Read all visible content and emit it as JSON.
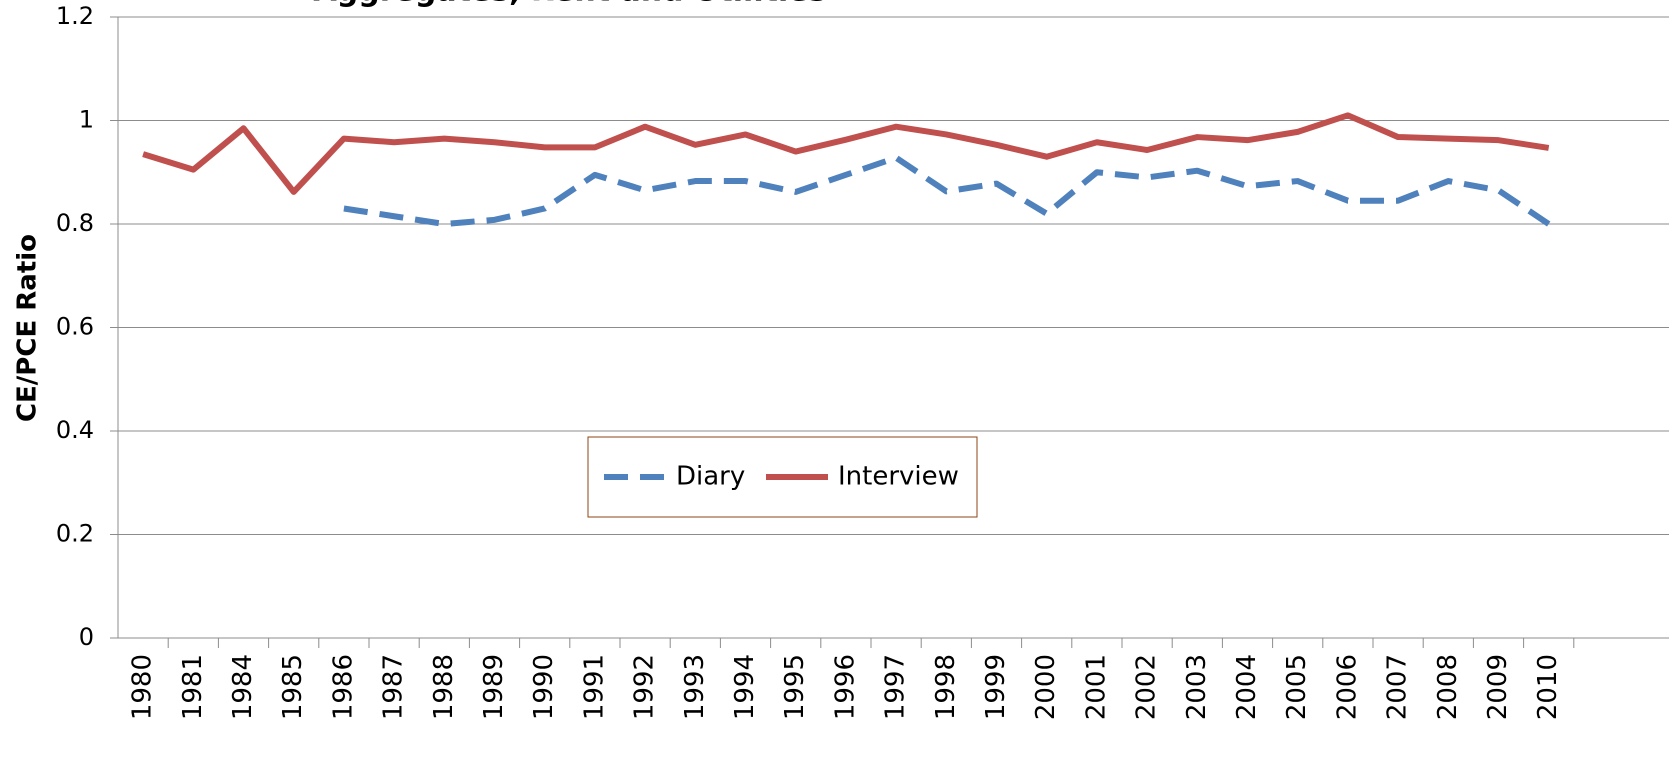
{
  "chart_data": {
    "type": "line",
    "title": "Aggregates, Rent and Utilities",
    "y_label": "CE/PCE Ratio",
    "categories": [
      "1980",
      "1981",
      "1984",
      "1985",
      "1986",
      "1987",
      "1988",
      "1989",
      "1990",
      "1991",
      "1992",
      "1993",
      "1994",
      "1995",
      "1996",
      "1997",
      "1998",
      "1999",
      "2000",
      "2001",
      "2002",
      "2003",
      "2004",
      "2005",
      "2006",
      "2007",
      "2008",
      "2009",
      "2010"
    ],
    "series": [
      {
        "name": "Diary",
        "color": "#4f81bd",
        "dashed": true,
        "values": [
          null,
          null,
          null,
          null,
          0.83,
          0.815,
          0.8,
          0.808,
          0.83,
          0.895,
          0.865,
          0.883,
          0.883,
          0.862,
          0.895,
          0.928,
          0.863,
          0.878,
          0.82,
          0.9,
          0.89,
          0.903,
          0.873,
          0.883,
          0.845,
          0.845,
          0.883,
          0.865,
          0.8
        ]
      },
      {
        "name": "Interview",
        "color": "#c0504d",
        "dashed": false,
        "values": [
          0.935,
          0.905,
          0.985,
          0.862,
          0.965,
          0.958,
          0.965,
          0.958,
          0.948,
          0.948,
          0.988,
          0.953,
          0.973,
          0.94,
          0.963,
          0.988,
          0.973,
          0.953,
          0.93,
          0.958,
          0.943,
          0.968,
          0.962,
          0.978,
          1.01,
          0.968,
          0.965,
          0.962,
          0.947
        ]
      }
    ],
    "ylim": [
      0,
      1.2
    ],
    "yticks": [
      0,
      0.2,
      0.4,
      0.6,
      0.8,
      1,
      1.2
    ],
    "grid": true
  }
}
